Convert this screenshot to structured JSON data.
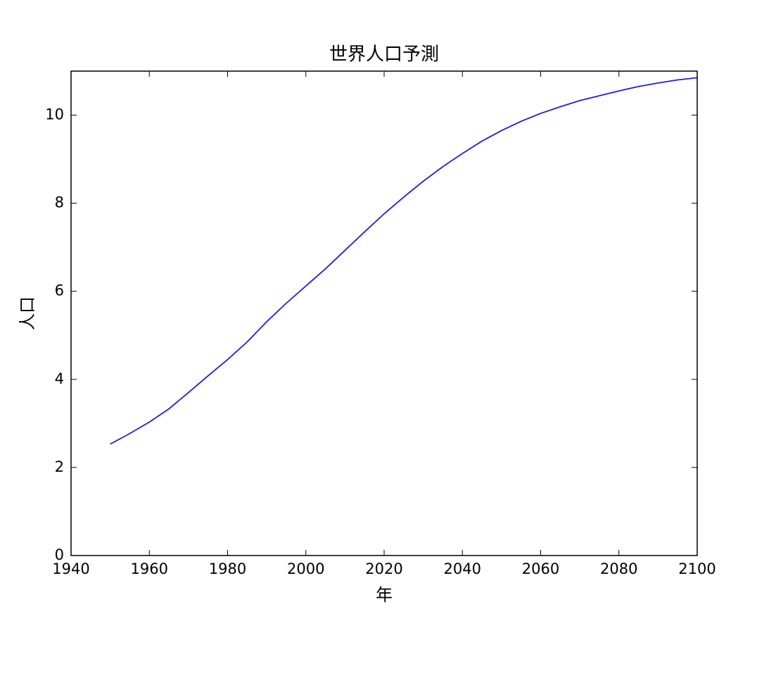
{
  "chart_data": {
    "type": "line",
    "title": "世界人口予測",
    "x_label": "年",
    "y_label": "人口",
    "x": [
      1950,
      1955,
      1960,
      1965,
      1970,
      1975,
      1980,
      1985,
      1990,
      1995,
      2000,
      2005,
      2010,
      2015,
      2020,
      2025,
      2030,
      2035,
      2040,
      2045,
      2050,
      2055,
      2060,
      2065,
      2070,
      2075,
      2080,
      2085,
      2090,
      2095,
      2100
    ],
    "series": [
      {
        "color": "#1f1fd6",
        "values": [
          2.53,
          2.77,
          3.03,
          3.33,
          3.7,
          4.08,
          4.45,
          4.85,
          5.31,
          5.73,
          6.12,
          6.51,
          6.93,
          7.35,
          7.76,
          8.14,
          8.5,
          8.83,
          9.13,
          9.41,
          9.65,
          9.86,
          10.04,
          10.19,
          10.33,
          10.44,
          10.55,
          10.65,
          10.73,
          10.8,
          10.85
        ]
      }
    ],
    "xlim": [
      1940,
      2100
    ],
    "xticks": [
      1940,
      1960,
      1980,
      2000,
      2020,
      2040,
      2060,
      2080,
      2100
    ],
    "ylim": [
      0,
      11
    ],
    "yticks": [
      0,
      2,
      4,
      6,
      8,
      10
    ],
    "grid": false
  }
}
